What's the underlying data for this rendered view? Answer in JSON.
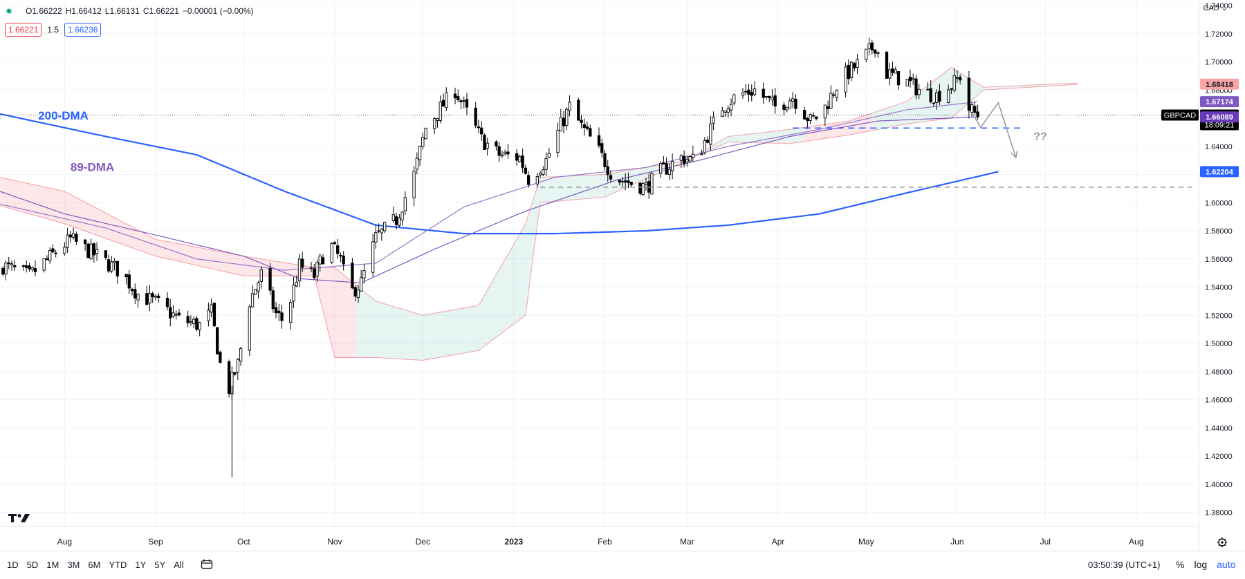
{
  "symbol": "GBPCAD",
  "ohlc": {
    "o": "O1.66222",
    "h": "H1.66412",
    "l": "L1.66131",
    "c": "C1.66221",
    "chg": "−0.00001 (−0.00%)"
  },
  "quote": {
    "sell": "1.66221",
    "spread": "1.5",
    "buy": "1.66236"
  },
  "currency": "CAD",
  "countdown": "18:09:21",
  "time_ranges": [
    "1D",
    "5D",
    "1M",
    "3M",
    "6M",
    "YTD",
    "1Y",
    "5Y",
    "All"
  ],
  "clock": "03:50:39 (UTC+1)",
  "scale_options": {
    "percent": "%",
    "log": "log",
    "auto": "auto"
  },
  "icons": {
    "status": "status-dot-icon",
    "calendar": "calendar-icon",
    "settings": "gear-icon",
    "logo": "tradingview-logo"
  },
  "colors": {
    "up": "#ffffff",
    "down": "#000000",
    "dma200": "#2962ff",
    "dma89": "#7e57c2",
    "cloud_bull": "#089981",
    "cloud_bear": "#f23645",
    "annotation": "#999999"
  },
  "chart_data": {
    "type": "candlestick",
    "symbol": "GBPCAD",
    "timeframe": "1D",
    "ylim": [
      1.37,
      1.74
    ],
    "y_ticks": [
      1.74,
      1.72,
      1.7,
      1.68,
      1.66,
      1.64,
      1.62,
      1.6,
      1.58,
      1.56,
      1.54,
      1.52,
      1.5,
      1.48,
      1.46,
      1.44,
      1.42,
      1.4,
      1.38
    ],
    "x_ticks": [
      "Aug",
      "Sep",
      "Oct",
      "Nov",
      "Dec",
      "2023",
      "Feb",
      "Mar",
      "Apr",
      "May",
      "Jun",
      "Jul",
      "Aug"
    ],
    "x_tick_dates": [
      "2022-08-01",
      "2022-09-01",
      "2022-10-01",
      "2022-11-01",
      "2022-12-01",
      "2023-01-01",
      "2023-02-01",
      "2023-03-01",
      "2023-04-01",
      "2023-05-01",
      "2023-06-01",
      "2023-07-01",
      "2023-08-01"
    ],
    "x_range": [
      "2022-07-10",
      "2023-08-22"
    ],
    "current_price": 1.66221,
    "price_labels": [
      {
        "value": "1.68418",
        "bg": "#f7a5a5",
        "fg": "#131722"
      },
      {
        "value": "1.67174",
        "bg": "#7e57c2",
        "fg": "#ffffff"
      },
      {
        "value": "1.66221",
        "bg": "#000000",
        "fg": "#ffffff"
      },
      {
        "value": "1.66089",
        "bg": "#673ab7",
        "fg": "#ffffff"
      },
      {
        "value": "1.62204",
        "bg": "#2962ff",
        "fg": "#ffffff"
      }
    ],
    "close_path": [
      [
        "2022-07-10",
        1.556
      ],
      [
        "2022-07-20",
        1.548
      ],
      [
        "2022-07-28",
        1.563
      ],
      [
        "2022-08-03",
        1.574
      ],
      [
        "2022-08-12",
        1.562
      ],
      [
        "2022-08-20",
        1.551
      ],
      [
        "2022-08-26",
        1.535
      ],
      [
        "2022-09-02",
        1.528
      ],
      [
        "2022-09-09",
        1.517
      ],
      [
        "2022-09-16",
        1.513
      ],
      [
        "2022-09-20",
        1.522
      ],
      [
        "2022-09-24",
        1.473
      ],
      [
        "2022-09-26",
        1.468
      ],
      [
        "2022-09-29",
        1.485
      ],
      [
        "2022-10-03",
        1.53
      ],
      [
        "2022-10-07",
        1.549
      ],
      [
        "2022-10-12",
        1.521
      ],
      [
        "2022-10-15",
        1.515
      ],
      [
        "2022-10-20",
        1.555
      ],
      [
        "2022-10-25",
        1.548
      ],
      [
        "2022-10-30",
        1.572
      ],
      [
        "2022-11-03",
        1.559
      ],
      [
        "2022-11-06",
        1.535
      ],
      [
        "2022-11-10",
        1.543
      ],
      [
        "2022-11-15",
        1.575
      ],
      [
        "2022-11-22",
        1.588
      ],
      [
        "2022-11-28",
        1.62
      ],
      [
        "2022-12-02",
        1.653
      ],
      [
        "2022-12-07",
        1.667
      ],
      [
        "2022-12-12",
        1.68
      ],
      [
        "2022-12-16",
        1.664
      ],
      [
        "2022-12-21",
        1.645
      ],
      [
        "2022-12-27",
        1.634
      ],
      [
        "2023-01-03",
        1.632
      ],
      [
        "2023-01-06",
        1.617
      ],
      [
        "2023-01-12",
        1.63
      ],
      [
        "2023-01-17",
        1.655
      ],
      [
        "2023-01-20",
        1.668
      ],
      [
        "2023-01-24",
        1.654
      ],
      [
        "2023-01-29",
        1.64
      ],
      [
        "2023-02-04",
        1.618
      ],
      [
        "2023-02-10",
        1.614
      ],
      [
        "2023-02-15",
        1.611
      ],
      [
        "2023-02-20",
        1.622
      ],
      [
        "2023-02-27",
        1.632
      ],
      [
        "2023-03-04",
        1.63
      ],
      [
        "2023-03-08",
        1.648
      ],
      [
        "2023-03-13",
        1.668
      ],
      [
        "2023-03-18",
        1.676
      ],
      [
        "2023-03-24",
        1.68
      ],
      [
        "2023-03-31",
        1.668
      ],
      [
        "2023-04-06",
        1.675
      ],
      [
        "2023-04-12",
        1.658
      ],
      [
        "2023-04-16",
        1.664
      ],
      [
        "2023-04-22",
        1.687
      ],
      [
        "2023-04-29",
        1.7
      ],
      [
        "2023-05-04",
        1.712
      ],
      [
        "2023-05-08",
        1.692
      ],
      [
        "2023-05-14",
        1.687
      ],
      [
        "2023-05-20",
        1.679
      ],
      [
        "2023-05-25",
        1.676
      ],
      [
        "2023-05-31",
        1.685
      ],
      [
        "2023-06-02",
        1.69
      ],
      [
        "2023-06-04",
        1.668
      ],
      [
        "2023-06-08",
        1.6622
      ]
    ],
    "series": [
      {
        "name": "200-DMA",
        "color": "#2962ff",
        "values": [
          [
            "2022-07-10",
            1.663
          ],
          [
            "2022-08-15",
            1.647
          ],
          [
            "2022-09-15",
            1.634
          ],
          [
            "2022-10-15",
            1.608
          ],
          [
            "2022-11-15",
            1.584
          ],
          [
            "2022-12-15",
            1.578
          ],
          [
            "2023-01-15",
            1.578
          ],
          [
            "2023-02-15",
            1.58
          ],
          [
            "2023-03-15",
            1.584
          ],
          [
            "2023-04-15",
            1.592
          ],
          [
            "2023-05-15",
            1.607
          ],
          [
            "2023-06-15",
            1.622
          ]
        ]
      },
      {
        "name": "89-DMA",
        "color": "#7e57c2",
        "values": [
          [
            "2022-07-10",
            1.608
          ],
          [
            "2022-08-01",
            1.592
          ],
          [
            "2022-09-01",
            1.577
          ],
          [
            "2022-10-01",
            1.562
          ],
          [
            "2022-10-20",
            1.546
          ],
          [
            "2022-11-10",
            1.543
          ],
          [
            "2022-12-05",
            1.567
          ],
          [
            "2023-01-05",
            1.594
          ],
          [
            "2023-02-05",
            1.616
          ],
          [
            "2023-03-05",
            1.63
          ],
          [
            "2023-04-05",
            1.647
          ],
          [
            "2023-05-05",
            1.658
          ],
          [
            "2023-06-08",
            1.6609
          ]
        ]
      },
      {
        "name": "ma-fast",
        "color": "#9575cd",
        "values": [
          [
            "2022-07-10",
            1.599
          ],
          [
            "2022-08-15",
            1.582
          ],
          [
            "2022-09-15",
            1.56
          ],
          [
            "2022-10-15",
            1.552
          ],
          [
            "2022-11-15",
            1.557
          ],
          [
            "2022-12-15",
            1.597
          ],
          [
            "2023-01-15",
            1.618
          ],
          [
            "2023-02-15",
            1.625
          ],
          [
            "2023-03-15",
            1.64
          ],
          [
            "2023-04-15",
            1.652
          ],
          [
            "2023-05-15",
            1.666
          ],
          [
            "2023-06-08",
            1.6717
          ]
        ]
      }
    ],
    "cloud": {
      "upper": [
        [
          "2022-07-10",
          1.618
        ],
        [
          "2022-08-01",
          1.608
        ],
        [
          "2022-09-01",
          1.574
        ],
        [
          "2022-10-01",
          1.562
        ],
        [
          "2022-10-25",
          1.554
        ],
        [
          "2022-11-01",
          1.554
        ],
        [
          "2022-11-15",
          1.53
        ],
        [
          "2022-12-01",
          1.52
        ],
        [
          "2022-12-20",
          1.527
        ],
        [
          "2023-01-05",
          1.585
        ],
        [
          "2023-01-10",
          1.618
        ],
        [
          "2023-02-01",
          1.62
        ],
        [
          "2023-03-01",
          1.63
        ],
        [
          "2023-03-15",
          1.647
        ],
        [
          "2023-04-05",
          1.652
        ],
        [
          "2023-04-25",
          1.658
        ],
        [
          "2023-05-15",
          1.672
        ],
        [
          "2023-05-30",
          1.696
        ],
        [
          "2023-06-10",
          1.682
        ],
        [
          "2023-07-12",
          1.685
        ]
      ],
      "lower": [
        [
          "2022-07-10",
          1.598
        ],
        [
          "2022-08-01",
          1.585
        ],
        [
          "2022-09-01",
          1.562
        ],
        [
          "2022-10-01",
          1.548
        ],
        [
          "2022-10-25",
          1.548
        ],
        [
          "2022-11-01",
          1.49
        ],
        [
          "2022-11-15",
          1.49
        ],
        [
          "2022-12-01",
          1.488
        ],
        [
          "2022-12-20",
          1.495
        ],
        [
          "2023-01-05",
          1.52
        ],
        [
          "2023-01-10",
          1.6
        ],
        [
          "2023-02-01",
          1.604
        ],
        [
          "2023-03-01",
          1.63
        ],
        [
          "2023-03-15",
          1.643
        ],
        [
          "2023-04-05",
          1.642
        ],
        [
          "2023-04-25",
          1.648
        ],
        [
          "2023-05-15",
          1.656
        ],
        [
          "2023-05-30",
          1.66
        ],
        [
          "2023-06-10",
          1.68
        ],
        [
          "2023-07-12",
          1.684
        ]
      ]
    },
    "annotations": {
      "labels": [
        {
          "text": "200-DMA",
          "date": "2022-07-23",
          "y": 1.659,
          "color": "#2962ff"
        },
        {
          "text": "89-DMA",
          "date": "2022-08-03",
          "y": 1.6225,
          "color": "#7e57c2"
        },
        {
          "text": "??",
          "date": "2023-06-27",
          "y": 1.6445,
          "color": "#999999"
        }
      ],
      "support_lines": [
        {
          "y": 1.653,
          "from": "2023-04-06",
          "to": "2023-06-24",
          "color": "#2962ff",
          "style": "dashed"
        },
        {
          "y": 1.611,
          "from": "2023-01-10",
          "to": "2023-08-20",
          "color": "#999999",
          "style": "dashed"
        }
      ],
      "forecast_path": [
        [
          "2023-06-06",
          1.664
        ],
        [
          "2023-06-09",
          1.6535
        ],
        [
          "2023-06-15",
          1.671
        ],
        [
          "2023-06-21",
          1.632
        ]
      ]
    }
  }
}
